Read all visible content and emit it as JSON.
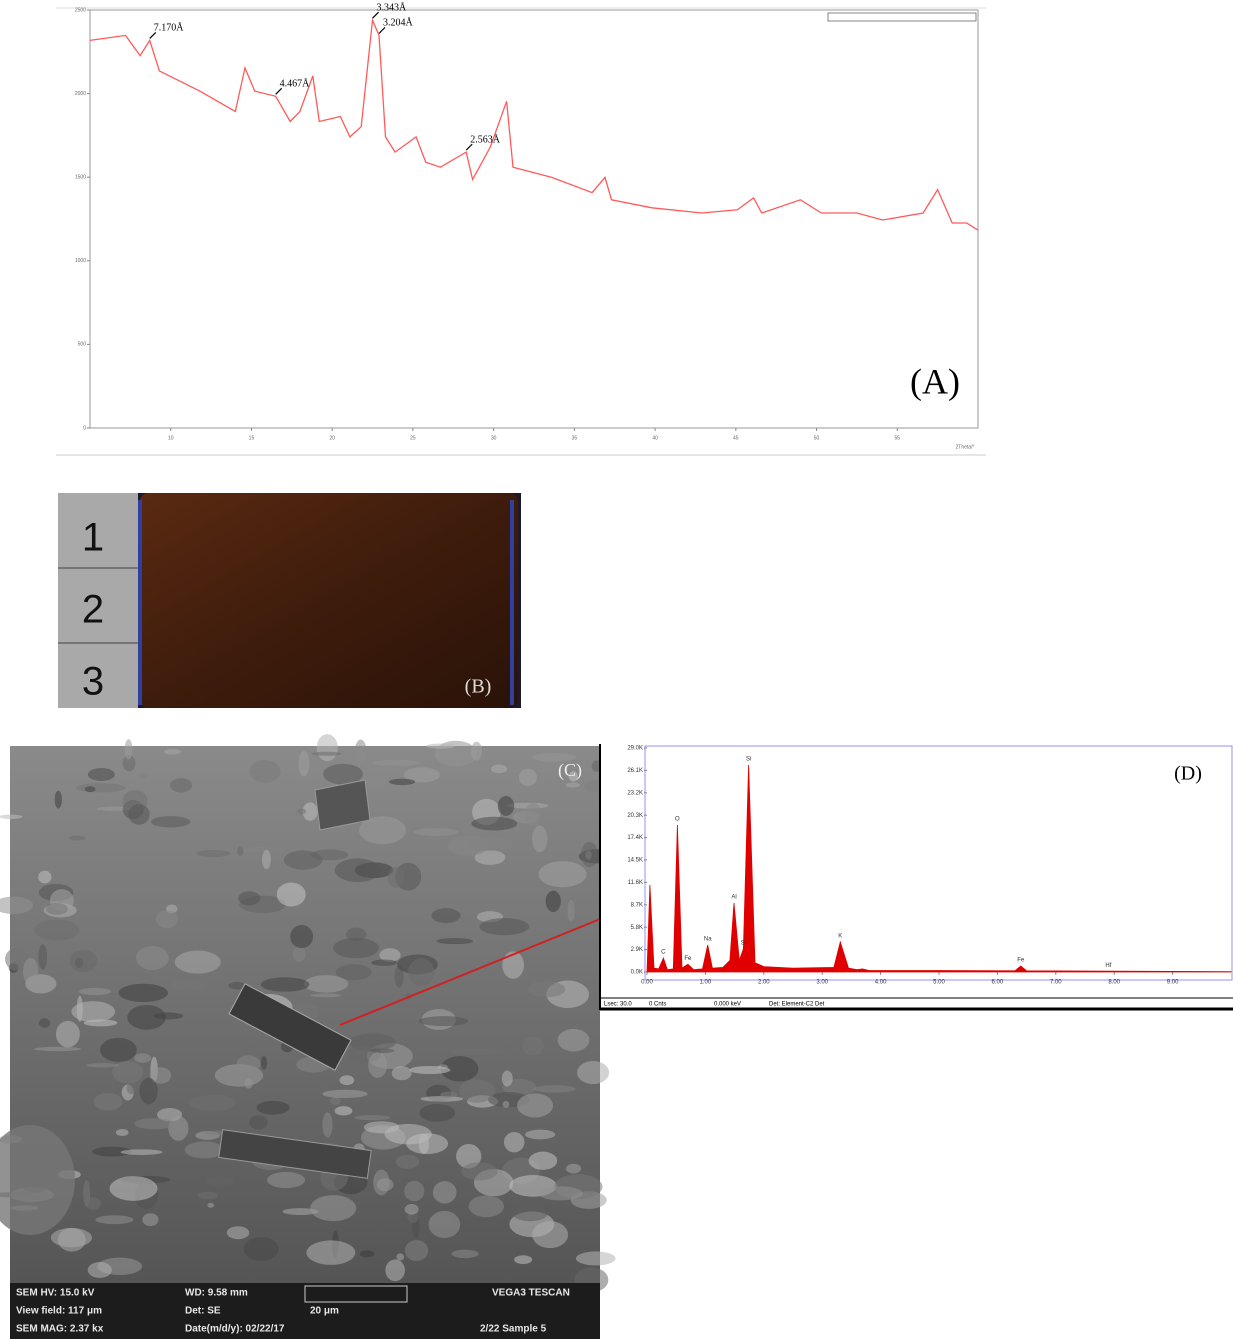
{
  "chart_data": [
    {
      "type": "line",
      "label": "(A)",
      "x_label": "2Theta/°",
      "color": "#ff5a5a",
      "xlim": [
        5,
        60
      ],
      "xticks": [
        10,
        15,
        20,
        25,
        30,
        35,
        40,
        45,
        50,
        55
      ],
      "ylim": [
        0,
        2500
      ],
      "yticks": [
        0,
        500,
        1000,
        1500,
        2000,
        2500
      ],
      "x": [
        5.0,
        7.2,
        8.1,
        8.7,
        9.3,
        11.8,
        14.0,
        14.6,
        15.2,
        16.5,
        17.4,
        18.0,
        18.8,
        19.2,
        20.5,
        21.1,
        21.8,
        22.5,
        22.9,
        23.3,
        23.9,
        25.2,
        25.8,
        26.7,
        28.3,
        28.7,
        29.8,
        30.8,
        31.2,
        33.6,
        36.1,
        36.9,
        37.3,
        39.8,
        42.9,
        45.1,
        46.1,
        46.6,
        49.0,
        50.3,
        52.5,
        54.1,
        56.6,
        57.5,
        58.4,
        59.3,
        60.0
      ],
      "values": [
        2318,
        2348,
        2227,
        2318,
        2136,
        2015,
        1893,
        2154,
        2015,
        1984,
        1833,
        1893,
        2105,
        1833,
        1863,
        1741,
        1802,
        2439,
        2348,
        1741,
        1650,
        1741,
        1590,
        1560,
        1650,
        1487,
        1681,
        1954,
        1560,
        1499,
        1408,
        1499,
        1365,
        1317,
        1286,
        1305,
        1377,
        1286,
        1365,
        1286,
        1286,
        1244,
        1286,
        1426,
        1226,
        1226,
        1183
      ],
      "annotations": [
        {
          "text": "7.170Å",
          "x": 8.7,
          "y": 2318
        },
        {
          "text": "4.467Å",
          "x": 16.5,
          "y": 1984
        },
        {
          "text": "3.343Å",
          "x": 22.5,
          "y": 2439
        },
        {
          "text": "3.204Å",
          "x": 22.9,
          "y": 2348
        },
        {
          "text": "2.563Å",
          "x": 28.3,
          "y": 1650
        }
      ]
    },
    {
      "type": "area",
      "label": "(D)",
      "color": "#e00000",
      "xlim": [
        0,
        10
      ],
      "xticks": [
        {
          "value": 0,
          "label": "0.00"
        },
        {
          "value": 1,
          "label": "1.00"
        },
        {
          "value": 2,
          "label": "2.00"
        },
        {
          "value": 3,
          "label": "3.00"
        },
        {
          "value": 4,
          "label": "4.00"
        },
        {
          "value": 5,
          "label": "5.00"
        },
        {
          "value": 6,
          "label": "6.00"
        },
        {
          "value": 7,
          "label": "7.00"
        },
        {
          "value": 8,
          "label": "8.00"
        },
        {
          "value": 9,
          "label": "9.00"
        }
      ],
      "ylim": [
        0,
        29000
      ],
      "yticks": [
        {
          "value": 0,
          "label": "0.0K"
        },
        {
          "value": 2900,
          "label": "2.9K"
        },
        {
          "value": 5800,
          "label": "5.8K"
        },
        {
          "value": 8700,
          "label": "8.7K"
        },
        {
          "value": 11600,
          "label": "11.6K"
        },
        {
          "value": 14500,
          "label": "14.5K"
        },
        {
          "value": 17400,
          "label": "17.4K"
        },
        {
          "value": 20300,
          "label": "20.3K"
        },
        {
          "value": 23200,
          "label": "23.2K"
        },
        {
          "value": 26100,
          "label": "26.1K"
        },
        {
          "value": 29000,
          "label": "29.0K"
        }
      ],
      "x": [
        0,
        0.05,
        0.12,
        0.2,
        0.28,
        0.35,
        0.45,
        0.52,
        0.6,
        0.7,
        0.8,
        0.95,
        1.04,
        1.12,
        1.3,
        1.42,
        1.49,
        1.58,
        1.65,
        1.74,
        1.85,
        2.0,
        2.5,
        3.2,
        3.31,
        3.45,
        3.6,
        3.69,
        3.8,
        5,
        6.3,
        6.4,
        6.5,
        7.9,
        10
      ],
      "values": [
        0,
        11260,
        500,
        400,
        1812,
        300,
        400,
        19030,
        500,
        1000,
        300,
        400,
        3495,
        500,
        600,
        1500,
        8930,
        1500,
        3000,
        26800,
        1200,
        700,
        500,
        600,
        3880,
        500,
        300,
        400,
        200,
        200,
        150,
        777,
        150,
        100,
        50
      ],
      "annotations": [
        {
          "text": "C",
          "x": 0.28,
          "y": 1812
        },
        {
          "text": "O",
          "x": 0.52,
          "y": 19030
        },
        {
          "text": "Fe",
          "x": 0.7,
          "y": 1000
        },
        {
          "text": "Na",
          "x": 1.04,
          "y": 3495
        },
        {
          "text": "Al",
          "x": 1.49,
          "y": 8930
        },
        {
          "text": "Si",
          "x": 1.65,
          "y": 3000
        },
        {
          "text": "Si",
          "x": 1.74,
          "y": 26800
        },
        {
          "text": "K",
          "x": 3.31,
          "y": 3880
        },
        {
          "text": "Fe",
          "x": 6.4,
          "y": 777
        },
        {
          "text": "Hf",
          "x": 7.9,
          "y": 100
        }
      ],
      "footer": [
        "Lsec: 30.0",
        "0 Cnts",
        "0.000 keV",
        "Det: Element-C2 Det"
      ]
    }
  ],
  "panel_b": {
    "label": "(B)",
    "ruler": [
      "1",
      "2",
      "3"
    ]
  },
  "panel_c": {
    "label": "(C)",
    "info": [
      [
        "SEM HV: 15.0 kV",
        "WD: 9.58 mm",
        "VEGA3 TESCAN"
      ],
      [
        "View field: 117 μm",
        "Det: SE",
        "20 μm"
      ],
      [
        "SEM MAG: 2.37 kx",
        "Date(m/d/y): 02/22/17",
        "2/22 Sample 5"
      ]
    ]
  }
}
